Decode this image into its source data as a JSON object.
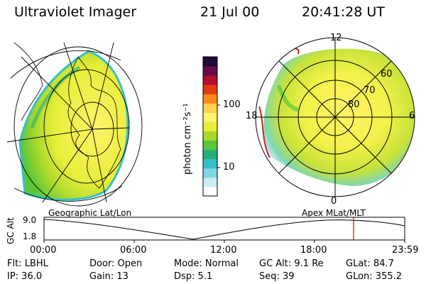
{
  "header": {
    "title": "Ultraviolet Imager",
    "date": "21 Jul 00",
    "time": "20:41:28 UT"
  },
  "colorbar": {
    "unit_label": "photon cm⁻²s⁻¹",
    "ticks": [
      "100",
      "10"
    ],
    "colors": [
      "#ffffff",
      "#c8ecf4",
      "#7fd6e8",
      "#35c0c8",
      "#22b07a",
      "#5cc63a",
      "#a8d82c",
      "#e8ee3a",
      "#fff36a",
      "#ffd24a",
      "#ff8a1a",
      "#e43a12",
      "#b0102a",
      "#6a0a4a",
      "#20083a"
    ]
  },
  "left_map": {
    "label": "Geographic Lat/Lon"
  },
  "right_map": {
    "label": "Apex MLat/MLT",
    "mlt_labels": {
      "top": "12",
      "left": "18",
      "right": "6",
      "bottom": "0"
    },
    "lat_labels": [
      "60",
      "70",
      "80"
    ]
  },
  "altitude_plot": {
    "ylabel": "GC Alt",
    "yticks": [
      "9.0",
      "1.8"
    ],
    "xticks": [
      "00:00",
      "06:00",
      "12:00",
      "18:00",
      "23:59"
    ],
    "marker_color": "#cc0000"
  },
  "info": {
    "filter": "Flt: LBHL",
    "door": "Door: Open",
    "mode": "Mode: Normal",
    "gc_alt": "GC Alt: 9.1 Re",
    "glat": "GLat: 84.7",
    "ip": "IP: 36.0",
    "gain": "Gain: 13",
    "dsp": "Dsp:    5.1",
    "seq": "Seq: 39",
    "glon": "GLon: 355.2"
  }
}
